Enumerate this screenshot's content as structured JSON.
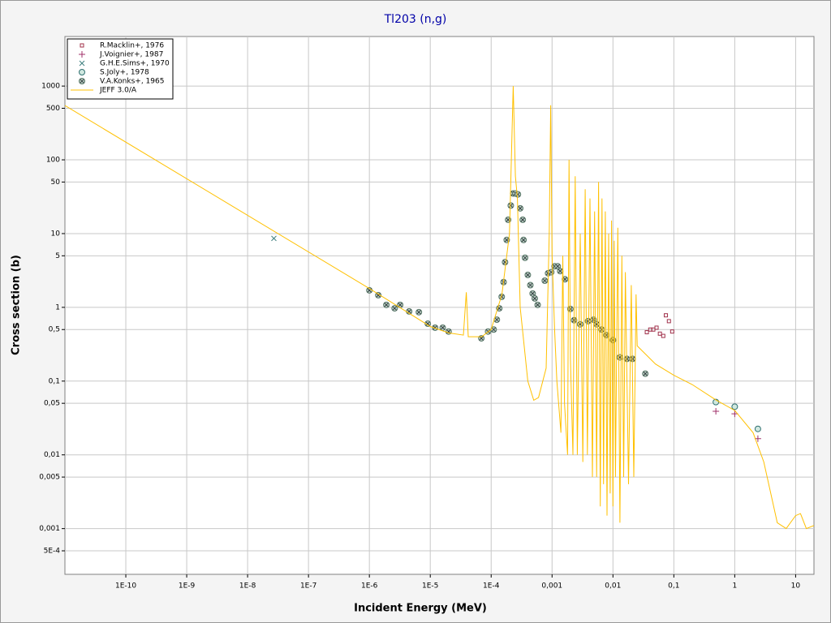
{
  "chart_data": {
    "type": "scatter",
    "title": "Tl203 (n,g)",
    "x_label": "Incident Energy (MeV)",
    "y_label": "Cross section (b)",
    "xscale": "log",
    "yscale": "log",
    "grid": true,
    "legend": "upper left",
    "xlim": [
      1e-11,
      20
    ],
    "ylim": [
      0.00024,
      4700
    ],
    "xticks": [
      {
        "value": 1e-10,
        "label": "1E-10"
      },
      {
        "value": 1e-09,
        "label": "1E-9"
      },
      {
        "value": 1e-08,
        "label": "1E-8"
      },
      {
        "value": 1e-07,
        "label": "1E-7"
      },
      {
        "value": 1e-06,
        "label": "1E-6"
      },
      {
        "value": 1e-05,
        "label": "1E-5"
      },
      {
        "value": 0.0001,
        "label": "1E-4"
      },
      {
        "value": 0.001,
        "label": "0,001"
      },
      {
        "value": 0.01,
        "label": "0,01"
      },
      {
        "value": 0.1,
        "label": "0,1"
      },
      1,
      10
    ],
    "yticks": [
      1000,
      500,
      100,
      50,
      10,
      5,
      1,
      {
        "value": 0.5,
        "label": "0,5"
      },
      {
        "value": 0.1,
        "label": "0,1"
      },
      {
        "value": 0.05,
        "label": "0,05"
      },
      {
        "value": 0.01,
        "label": "0,01"
      },
      {
        "value": 0.005,
        "label": "0,005"
      },
      {
        "value": 0.001,
        "label": "0,001"
      },
      {
        "value": 0.0005,
        "label": "5E-4"
      }
    ],
    "series": [
      {
        "name": "R.Macklin+, 1976",
        "color": "#a0304a",
        "marker": "square",
        "x": [
          0.036,
          0.041,
          0.046,
          0.052,
          0.059,
          0.067,
          0.074,
          0.083,
          0.094
        ],
        "values": [
          0.46,
          0.5,
          0.5,
          0.53,
          0.44,
          0.41,
          0.78,
          0.65,
          0.47
        ]
      },
      {
        "name": "J.Voignier+, 1987",
        "color": "#a0306a",
        "marker": "plus",
        "x": [
          0.49,
          1,
          2.4
        ],
        "values": [
          0.039,
          0.036,
          0.0166
        ]
      },
      {
        "name": "G.H.E.Sims+, 1970",
        "color": "#408080",
        "marker": "cross",
        "x": [
          2.7e-08
        ],
        "values": [
          8.6
        ]
      },
      {
        "name": "S.Joly+, 1978",
        "color": "#307070",
        "marker": "circle",
        "x": [
          0.49,
          1,
          2.4
        ],
        "values": [
          0.052,
          0.045,
          0.0225
        ]
      },
      {
        "name": "V.A.Konks+, 1965",
        "color": "#5a7a6a",
        "marker": "circle-cross",
        "x": [
          1e-06,
          1.4e-06,
          1.9e-06,
          2.6e-06,
          3.2e-06,
          4.5e-06,
          6.5e-06,
          9.1e-06,
          1.2e-05,
          1.6e-05,
          2e-05,
          6.9e-05,
          8.9e-05,
          0.00011,
          0.000124,
          0.000136,
          0.000149,
          0.00016,
          0.000169,
          0.00018,
          0.00019,
          0.00021,
          0.00023,
          0.00025,
          0.000275,
          0.0003,
          0.00033,
          0.00034,
          0.00036,
          0.0004,
          0.00044,
          0.00048,
          0.00052,
          0.00058,
          0.00076,
          0.00086,
          0.00097,
          0.0011,
          0.00124,
          0.00136,
          0.00163,
          0.002,
          0.0023,
          0.0029,
          0.0039,
          0.0048,
          0.0054,
          0.0065,
          0.0078,
          0.01,
          0.013,
          0.017,
          0.021,
          0.034
        ],
        "values": [
          1.7,
          1.46,
          1.08,
          0.97,
          1.08,
          0.88,
          0.86,
          0.6,
          0.53,
          0.53,
          0.47,
          0.38,
          0.47,
          0.5,
          0.68,
          0.97,
          1.39,
          2.2,
          4.1,
          8.2,
          15.4,
          24,
          35,
          35,
          34,
          22,
          15.4,
          8.2,
          4.7,
          2.75,
          2,
          1.54,
          1.32,
          1.08,
          2.3,
          2.9,
          3,
          3.6,
          3.6,
          3.1,
          2.4,
          0.95,
          0.67,
          0.59,
          0.65,
          0.68,
          0.59,
          0.5,
          0.42,
          0.36,
          0.21,
          0.2,
          0.2,
          0.126
        ]
      },
      {
        "name": "JEFF 3.0/A",
        "color": "#ffc000",
        "marker": "line",
        "x": [
          1e-11,
          1e-06,
          1e-05,
          2e-05,
          3.5e-05,
          3.9e-05,
          4.2e-05,
          7e-05,
          0.0001,
          0.00015,
          0.0002,
          0.00023,
          0.00025,
          0.00027,
          0.0003,
          0.0004,
          0.0005,
          0.0006,
          0.0008,
          0.0009,
          0.00095,
          0.001,
          0.0011,
          0.0012,
          0.0014,
          0.0015,
          0.0016,
          0.0018,
          0.0019,
          0.002,
          0.0022,
          0.0024,
          0.0026,
          0.0029,
          0.0032,
          0.0035,
          0.0038,
          0.0042,
          0.0046,
          0.005,
          0.0054,
          0.0058,
          0.0062,
          0.0066,
          0.007,
          0.0075,
          0.008,
          0.0085,
          0.009,
          0.0095,
          0.01,
          0.0105,
          0.011,
          0.012,
          0.013,
          0.014,
          0.015,
          0.016,
          0.018,
          0.02,
          0.022,
          0.024,
          0.025,
          0.05,
          0.1,
          0.2,
          0.5,
          1,
          2,
          3,
          5,
          7,
          10,
          12,
          15,
          20
        ],
        "values": [
          545,
          1.8,
          0.55,
          0.45,
          0.42,
          1.6,
          0.4,
          0.4,
          0.5,
          1.5,
          10,
          1000,
          60,
          30,
          1,
          0.1,
          0.055,
          0.06,
          0.15,
          10,
          550,
          5,
          0.5,
          0.1,
          0.02,
          5,
          0.05,
          0.01,
          100,
          0.2,
          0.01,
          60,
          0.01,
          10,
          0.008,
          40,
          0.01,
          30,
          0.005,
          20,
          0.005,
          50,
          0.002,
          30,
          0.004,
          20,
          0.0015,
          10,
          0.003,
          15,
          0.002,
          8,
          0.005,
          12,
          0.0012,
          5,
          0.005,
          3,
          0.004,
          2,
          0.005,
          1.5,
          0.3,
          0.17,
          0.12,
          0.09,
          0.055,
          0.04,
          0.02,
          0.008,
          0.0012,
          0.001,
          0.0015,
          0.0016,
          0.001,
          0.0011
        ]
      }
    ]
  }
}
